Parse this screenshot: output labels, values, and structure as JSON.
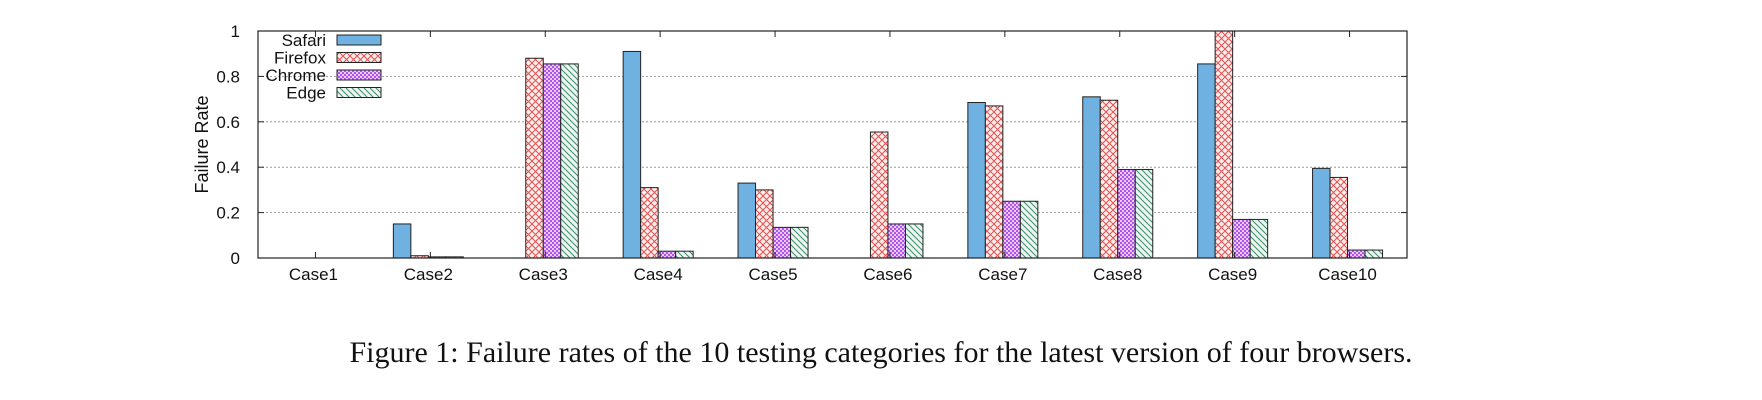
{
  "caption": "Figure 1: Failure rates of the 10 testing categories for the latest version of four browsers.",
  "chart_data": {
    "type": "bar",
    "ylabel": "Failure Rate",
    "xlabel": "",
    "ylim": [
      0,
      1
    ],
    "yticks": [
      0,
      0.2,
      0.4,
      0.6,
      0.8,
      1
    ],
    "ytick_labels": [
      "0",
      "0.2",
      "0.4",
      "0.6",
      "0.8",
      "1"
    ],
    "grid": "horizontal dotted",
    "legend_position": "top-left",
    "categories": [
      "Case1",
      "Case2",
      "Case3",
      "Case4",
      "Case5",
      "Case6",
      "Case7",
      "Case8",
      "Case9",
      "Case10"
    ],
    "series": [
      {
        "name": "Safari",
        "fill": "#6fb1e0",
        "pattern": "solid",
        "values": [
          0,
          0.15,
          0,
          0.91,
          0.33,
          0,
          0.685,
          0.71,
          0.855,
          0.395
        ]
      },
      {
        "name": "Firefox",
        "fill": "#e0524f",
        "pattern": "crosshatch",
        "values": [
          0,
          0.01,
          0.88,
          0.31,
          0.3,
          0.555,
          0.67,
          0.695,
          1.0,
          0.355
        ]
      },
      {
        "name": "Chrome",
        "fill": "#b055e8",
        "pattern": "checker",
        "values": [
          0,
          0.005,
          0.855,
          0.03,
          0.135,
          0.15,
          0.25,
          0.39,
          0.17,
          0.035
        ]
      },
      {
        "name": "Edge",
        "fill": "#3f8c6b",
        "pattern": "diagonal",
        "values": [
          0,
          0.005,
          0.855,
          0.03,
          0.135,
          0.15,
          0.25,
          0.39,
          0.17,
          0.035
        ]
      }
    ]
  }
}
